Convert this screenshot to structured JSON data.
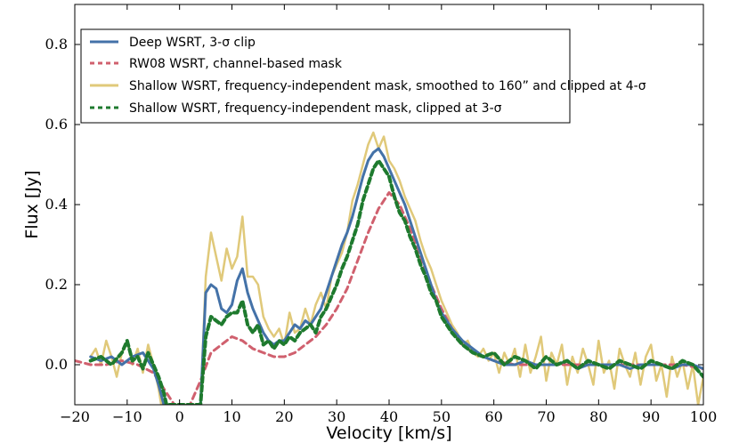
{
  "chart_data": {
    "type": "line",
    "title": "",
    "xlabel": "Velocity [km/s]",
    "ylabel": "Flux [Jy]",
    "xlim": [
      -20,
      100
    ],
    "ylim": [
      -0.1,
      0.9
    ],
    "grid": false,
    "legend_position": "top-left",
    "x_ticks": [
      -20,
      -10,
      0,
      10,
      20,
      30,
      40,
      50,
      60,
      70,
      80,
      90,
      100
    ],
    "x_tick_labels": [
      "−20",
      "−10",
      "0",
      "10",
      "20",
      "30",
      "40",
      "50",
      "60",
      "70",
      "80",
      "90",
      "100"
    ],
    "y_ticks": [
      0.0,
      0.2,
      0.4,
      0.6,
      0.8
    ],
    "y_tick_labels": [
      "0.0",
      "0.2",
      "0.4",
      "0.6",
      "0.8"
    ],
    "series": [
      {
        "name": "Deep WSRT, 3-σ clip",
        "color": "#4472a8",
        "style": "solid",
        "x": [
          -17,
          -15,
          -13,
          -11,
          -9,
          -7,
          -5,
          -4,
          -3,
          -2,
          4,
          5,
          6,
          7,
          8,
          9,
          10,
          11,
          12,
          13,
          14,
          15,
          16,
          17,
          18,
          19,
          20,
          21,
          22,
          23,
          24,
          25,
          26,
          27,
          28,
          29,
          30,
          31,
          32,
          33,
          34,
          35,
          36,
          37,
          38,
          39,
          40,
          41,
          42,
          43,
          44,
          45,
          46,
          47,
          48,
          49,
          50,
          52,
          54,
          56,
          58,
          60,
          62,
          64,
          66,
          68,
          70,
          72,
          74,
          76,
          78,
          80,
          82,
          84,
          86,
          88,
          90,
          92,
          94,
          96,
          98,
          100
        ],
        "y": [
          0.02,
          0.01,
          0.02,
          0.0,
          0.02,
          0.03,
          -0.01,
          -0.05,
          -0.1,
          -0.14,
          -0.1,
          0.18,
          0.2,
          0.19,
          0.14,
          0.13,
          0.15,
          0.21,
          0.24,
          0.18,
          0.14,
          0.11,
          0.08,
          0.06,
          0.05,
          0.06,
          0.06,
          0.08,
          0.1,
          0.09,
          0.11,
          0.1,
          0.12,
          0.14,
          0.18,
          0.22,
          0.26,
          0.3,
          0.33,
          0.37,
          0.42,
          0.47,
          0.51,
          0.53,
          0.54,
          0.52,
          0.49,
          0.46,
          0.43,
          0.4,
          0.36,
          0.32,
          0.28,
          0.24,
          0.2,
          0.16,
          0.13,
          0.09,
          0.06,
          0.04,
          0.02,
          0.01,
          0.0,
          0.0,
          0.01,
          0.0,
          0.0,
          0.0,
          0.01,
          -0.01,
          0.0,
          0.0,
          0.0,
          0.0,
          -0.01,
          0.0,
          0.0,
          0.0,
          -0.01,
          0.0,
          0.0,
          -0.01
        ]
      },
      {
        "name": "RW08 WSRT, channel-based mask",
        "color": "#d0606e",
        "style": "dashed",
        "x": [
          -20,
          -17,
          -14,
          -11,
          -8,
          -5,
          -3,
          -1,
          0,
          2,
          4,
          6,
          8,
          10,
          12,
          14,
          16,
          18,
          20,
          22,
          24,
          26,
          28,
          30,
          32,
          34,
          36,
          38,
          40,
          42,
          44,
          46,
          48,
          50,
          52,
          54,
          56,
          58,
          60,
          64,
          68,
          72,
          76,
          80,
          84,
          88,
          92,
          96,
          100
        ],
        "y": [
          0.01,
          0.0,
          0.0,
          0.01,
          0.0,
          -0.02,
          -0.06,
          -0.1,
          -0.12,
          -0.1,
          -0.04,
          0.03,
          0.05,
          0.07,
          0.06,
          0.04,
          0.03,
          0.02,
          0.02,
          0.03,
          0.05,
          0.07,
          0.1,
          0.14,
          0.19,
          0.26,
          0.33,
          0.39,
          0.43,
          0.4,
          0.34,
          0.27,
          0.2,
          0.14,
          0.09,
          0.05,
          0.03,
          0.02,
          0.01,
          0.0,
          0.0,
          0.0,
          0.0,
          0.0,
          0.0,
          0.0,
          0.0,
          0.0,
          -0.01
        ]
      },
      {
        "name": "Shallow WSRT, frequency-independent mask, smoothed to 160” and clipped at 4-σ",
        "color": "#e0c97a",
        "style": "solid",
        "x": [
          -17,
          -16,
          -15,
          -14,
          -13,
          -12,
          -11,
          -10,
          -9,
          -8,
          -7,
          -6,
          -5,
          -4,
          -3.5,
          4,
          5,
          6,
          7,
          8,
          9,
          10,
          11,
          12,
          13,
          14,
          15,
          16,
          17,
          18,
          19,
          20,
          21,
          22,
          23,
          24,
          25,
          26,
          27,
          28,
          29,
          30,
          31,
          32,
          33,
          34,
          35,
          36,
          37,
          38,
          39,
          40,
          41,
          42,
          43,
          44,
          45,
          46,
          47,
          48,
          49,
          50,
          51,
          52,
          53,
          54,
          55,
          56,
          57,
          58,
          59,
          60,
          61,
          62,
          63,
          64,
          65,
          66,
          67,
          68,
          69,
          70,
          71,
          72,
          73,
          74,
          75,
          76,
          77,
          78,
          79,
          80,
          81,
          82,
          83,
          84,
          85,
          86,
          87,
          88,
          89,
          90,
          91,
          92,
          93,
          94,
          95,
          96,
          97,
          98,
          99,
          100
        ],
        "y": [
          0.02,
          0.04,
          0.0,
          0.06,
          0.02,
          -0.03,
          0.03,
          0.06,
          0.0,
          0.04,
          -0.02,
          0.05,
          0.0,
          -0.06,
          -0.1,
          -0.1,
          0.22,
          0.33,
          0.27,
          0.21,
          0.29,
          0.24,
          0.27,
          0.37,
          0.22,
          0.22,
          0.2,
          0.12,
          0.09,
          0.07,
          0.09,
          0.05,
          0.13,
          0.08,
          0.09,
          0.14,
          0.1,
          0.15,
          0.18,
          0.14,
          0.22,
          0.25,
          0.28,
          0.33,
          0.41,
          0.45,
          0.5,
          0.55,
          0.58,
          0.54,
          0.57,
          0.51,
          0.49,
          0.46,
          0.42,
          0.39,
          0.36,
          0.31,
          0.27,
          0.24,
          0.2,
          0.16,
          0.13,
          0.1,
          0.08,
          0.05,
          0.06,
          0.03,
          0.02,
          0.04,
          0.01,
          0.03,
          -0.02,
          0.03,
          0.0,
          0.04,
          -0.03,
          0.05,
          -0.02,
          0.02,
          0.07,
          -0.04,
          0.03,
          0.0,
          0.05,
          -0.05,
          0.02,
          -0.02,
          0.04,
          0.0,
          -0.05,
          0.06,
          -0.02,
          0.01,
          -0.06,
          0.04,
          0.0,
          -0.03,
          0.03,
          -0.05,
          0.02,
          0.05,
          -0.04,
          0.0,
          -0.08,
          0.02,
          -0.03,
          0.01,
          -0.06,
          0.0,
          -0.1,
          -0.03
        ]
      },
      {
        "name": "Shallow WSRT, frequency-independent mask, clipped at 3-σ",
        "color": "#1e7a2e",
        "style": "dashed",
        "x": [
          -17,
          -15,
          -13,
          -11,
          -10,
          -9,
          -8,
          -7,
          -6,
          -5,
          -4,
          -3,
          -2.5,
          4,
          5,
          6,
          7,
          8,
          9,
          10,
          11,
          12,
          13,
          14,
          15,
          16,
          17,
          18,
          19,
          20,
          21,
          22,
          23,
          24,
          25,
          26,
          27,
          28,
          29,
          30,
          31,
          32,
          33,
          34,
          35,
          36,
          37,
          38,
          39,
          40,
          41,
          42,
          43,
          44,
          45,
          46,
          47,
          48,
          49,
          50,
          52,
          54,
          56,
          58,
          60,
          62,
          64,
          66,
          68,
          70,
          72,
          74,
          76,
          78,
          80,
          82,
          84,
          86,
          88,
          90,
          92,
          94,
          96,
          98,
          100
        ],
        "y": [
          0.01,
          0.02,
          0.0,
          0.03,
          0.06,
          0.01,
          0.02,
          -0.01,
          0.03,
          0.0,
          -0.03,
          -0.07,
          -0.1,
          -0.1,
          0.07,
          0.12,
          0.11,
          0.1,
          0.12,
          0.13,
          0.13,
          0.16,
          0.1,
          0.08,
          0.1,
          0.05,
          0.06,
          0.04,
          0.06,
          0.05,
          0.07,
          0.06,
          0.08,
          0.09,
          0.1,
          0.08,
          0.12,
          0.14,
          0.17,
          0.2,
          0.24,
          0.27,
          0.31,
          0.35,
          0.41,
          0.45,
          0.49,
          0.51,
          0.49,
          0.47,
          0.42,
          0.38,
          0.36,
          0.32,
          0.29,
          0.25,
          0.22,
          0.18,
          0.16,
          0.12,
          0.08,
          0.05,
          0.03,
          0.02,
          0.03,
          0.0,
          0.02,
          0.01,
          -0.01,
          0.02,
          0.0,
          0.01,
          -0.01,
          0.01,
          0.0,
          -0.01,
          0.01,
          0.0,
          -0.01,
          0.01,
          0.0,
          -0.01,
          0.01,
          0.0,
          -0.03
        ]
      }
    ]
  }
}
